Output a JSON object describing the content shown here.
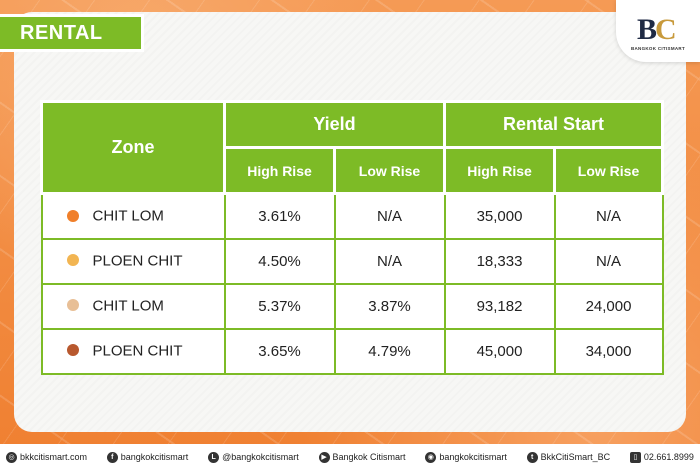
{
  "header": {
    "title": "RENTAL",
    "logo_text": "BC",
    "logo_caption": "BANGKOK CITISMART"
  },
  "table": {
    "zone_header": "Zone",
    "groups": [
      "Yield",
      "Rental Start"
    ],
    "subheaders": [
      "High Rise",
      "Low Rise",
      "High Rise",
      "Low Rise"
    ],
    "rows": [
      {
        "zone": "CHIT LOM",
        "dot_color": "#f07f2a",
        "yield_high": "3.61%",
        "yield_low": "N/A",
        "rent_high": "35,000",
        "rent_low": "N/A"
      },
      {
        "zone": "PLOEN CHIT",
        "dot_color": "#f2b552",
        "yield_high": "4.50%",
        "yield_low": "N/A",
        "rent_high": "18,333",
        "rent_low": "N/A"
      },
      {
        "zone": "CHIT LOM",
        "dot_color": "#e8bf96",
        "yield_high": "5.37%",
        "yield_low": "3.87%",
        "rent_high": "93,182",
        "rent_low": "24,000"
      },
      {
        "zone": "PLOEN CHIT",
        "dot_color": "#b8582e",
        "yield_high": "3.65%",
        "yield_low": "4.79%",
        "rent_high": "45,000",
        "rent_low": "34,000"
      }
    ]
  },
  "colors": {
    "accent": "#7dbb26",
    "background": "#f28a3c"
  },
  "footer": {
    "items": [
      {
        "icon": "globe-icon",
        "glyph": "◎",
        "text": "bkkcitismart.com"
      },
      {
        "icon": "facebook-icon",
        "glyph": "f",
        "text": "bangkokcitismart"
      },
      {
        "icon": "line-icon",
        "glyph": "L",
        "text": "@bangkokcitismart"
      },
      {
        "icon": "youtube-icon",
        "glyph": "▶",
        "text": "Bangkok Citismart"
      },
      {
        "icon": "instagram-icon",
        "glyph": "◉",
        "text": "bangkokcitismart"
      },
      {
        "icon": "twitter-icon",
        "glyph": "t",
        "text": "BkkCitiSmart_BC"
      },
      {
        "icon": "phone-icon",
        "glyph": "▯",
        "text": "02.661.8999"
      }
    ]
  }
}
